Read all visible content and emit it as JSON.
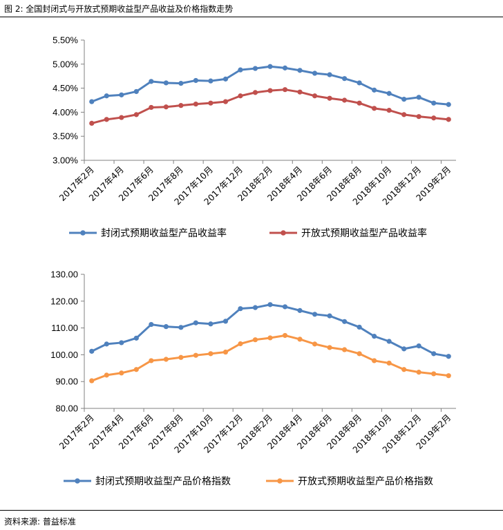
{
  "header": {
    "title": "图 2:  全国封闭式与开放式预期收益型产品收益及价格指数走势"
  },
  "footer": {
    "source": "资料来源:  普益标准"
  },
  "colors": {
    "closed": "#4F81BD",
    "open_yield": "#C0504D",
    "open_index": "#F79646",
    "axis": "#808080"
  },
  "chart_data": [
    {
      "type": "line",
      "title": "",
      "categories": [
        "2017年2月",
        "2017年3月",
        "2017年4月",
        "2017年5月",
        "2017年6月",
        "2017年7月",
        "2017年8月",
        "2017年9月",
        "2017年10月",
        "2017年11月",
        "2017年12月",
        "2018年1月",
        "2018年2月",
        "2018年3月",
        "2018年4月",
        "2018年5月",
        "2018年6月",
        "2018年7月",
        "2018年8月",
        "2018年9月",
        "2018年10月",
        "2018年11月",
        "2018年12月",
        "2019年1月",
        "2019年2月"
      ],
      "x_tick_labels": [
        "2017年2月",
        "2017年4月",
        "2017年6月",
        "2017年8月",
        "2017年10月",
        "2017年12月",
        "2018年2月",
        "2018年4月",
        "2018年6月",
        "2018年8月",
        "2018年10月",
        "2018年12月",
        "2019年2月"
      ],
      "y_tick_labels": [
        "3.00%",
        "3.50%",
        "4.00%",
        "4.50%",
        "5.00%",
        "5.50%"
      ],
      "ylim": [
        3.0,
        5.5
      ],
      "y_ticks": [
        3.0,
        3.5,
        4.0,
        4.5,
        5.0,
        5.5
      ],
      "series": [
        {
          "name": "封闭式预期收益型产品收益率",
          "color_key": "closed",
          "values": [
            4.22,
            4.34,
            4.36,
            4.43,
            4.64,
            4.61,
            4.6,
            4.66,
            4.65,
            4.69,
            4.88,
            4.91,
            4.95,
            4.92,
            4.87,
            4.81,
            4.78,
            4.7,
            4.61,
            4.46,
            4.39,
            4.27,
            4.31,
            4.19,
            4.16
          ]
        },
        {
          "name": "开放式预期收益型产品收益率",
          "color_key": "open_yield",
          "values": [
            3.77,
            3.85,
            3.89,
            3.95,
            4.1,
            4.11,
            4.14,
            4.17,
            4.19,
            4.22,
            4.34,
            4.41,
            4.45,
            4.47,
            4.42,
            4.34,
            4.29,
            4.25,
            4.19,
            4.08,
            4.04,
            3.95,
            3.91,
            3.88,
            3.85
          ]
        }
      ]
    },
    {
      "type": "line",
      "title": "",
      "categories": [
        "2017年2月",
        "2017年3月",
        "2017年4月",
        "2017年5月",
        "2017年6月",
        "2017年7月",
        "2017年8月",
        "2017年9月",
        "2017年10月",
        "2017年11月",
        "2017年12月",
        "2018年1月",
        "2018年2月",
        "2018年3月",
        "2018年4月",
        "2018年5月",
        "2018年6月",
        "2018年7月",
        "2018年8月",
        "2018年9月",
        "2018年10月",
        "2018年11月",
        "2018年12月",
        "2019年1月",
        "2019年2月"
      ],
      "x_tick_labels": [
        "2017年2月",
        "2017年4月",
        "2017年6月",
        "2017年8月",
        "2017年10月",
        "2017年12月",
        "2018年2月",
        "2018年4月",
        "2018年6月",
        "2018年8月",
        "2018年10月",
        "2018年12月",
        "2019年2月"
      ],
      "y_tick_labels": [
        "80.00",
        "90.00",
        "100.00",
        "110.00",
        "120.00",
        "130.00"
      ],
      "ylim": [
        80,
        130
      ],
      "y_ticks": [
        80,
        90,
        100,
        110,
        120,
        130
      ],
      "series": [
        {
          "name": "封闭式预期收益型产品价格指数",
          "color_key": "closed",
          "values": [
            101.3,
            104.0,
            104.5,
            106.2,
            111.3,
            110.5,
            110.2,
            111.9,
            111.5,
            112.5,
            117.2,
            117.6,
            118.7,
            117.9,
            116.5,
            115.1,
            114.5,
            112.4,
            110.3,
            106.9,
            105.0,
            102.2,
            103.3,
            100.4,
            99.4
          ]
        },
        {
          "name": "开放式预期收益型产品价格指数",
          "color_key": "open_index",
          "values": [
            90.3,
            92.4,
            93.2,
            94.5,
            97.8,
            98.3,
            99.0,
            99.8,
            100.4,
            101.0,
            104.1,
            105.6,
            106.3,
            107.2,
            105.8,
            104.0,
            102.7,
            101.9,
            100.4,
            97.8,
            96.9,
            94.5,
            93.5,
            92.9,
            92.2
          ]
        }
      ]
    }
  ]
}
